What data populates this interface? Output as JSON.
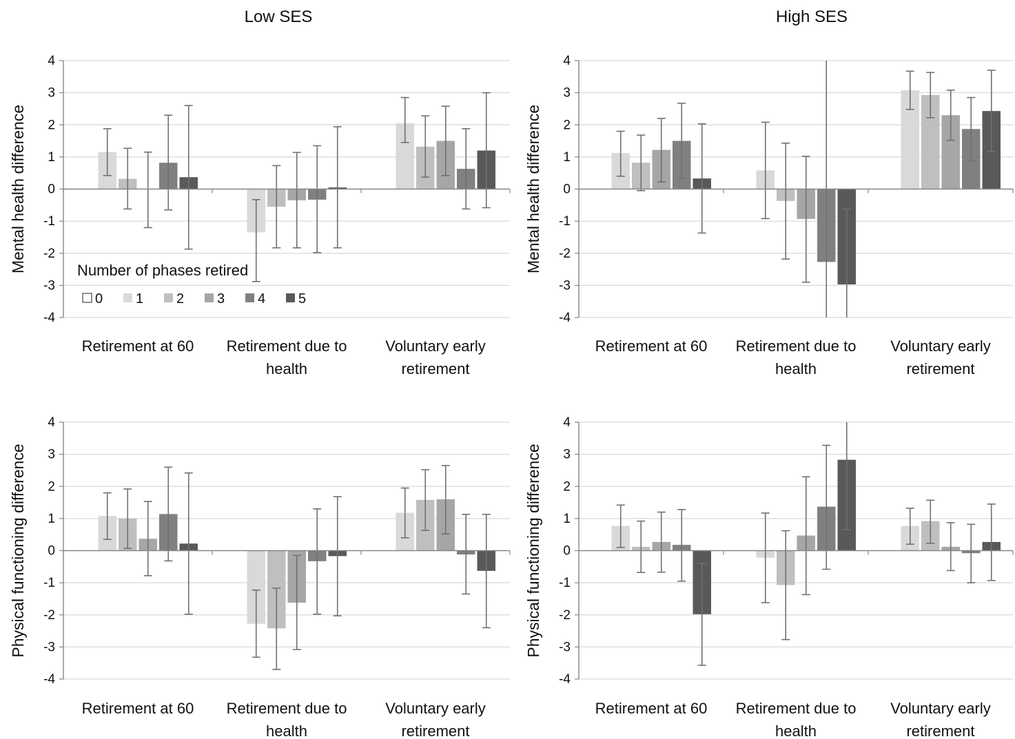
{
  "chart_data": [
    {
      "type": "bar",
      "title": "Low SES",
      "ylabel": "Mental health difference",
      "ylim": [
        -4,
        4
      ],
      "yticks": [
        4,
        3,
        2,
        1,
        0,
        -1,
        -2,
        -3,
        -4
      ],
      "grid": true,
      "categories": [
        [
          "Retirement at 60"
        ],
        [
          "Retirement due to",
          "health"
        ],
        [
          "Voluntary early",
          "retirement"
        ]
      ],
      "legend": {
        "title": "Number of phases retired",
        "placement": "lower-left",
        "entries": [
          "0",
          "1",
          "2",
          "3",
          "4",
          "5"
        ]
      },
      "series": [
        {
          "name": "0",
          "values": [
            0,
            0,
            0
          ],
          "errors": [
            null,
            null,
            null
          ]
        },
        {
          "name": "1",
          "values": [
            1.15,
            -1.35,
            2.05
          ],
          "errors": [
            [
              0.42,
              1.88
            ],
            [
              -2.88,
              -0.33
            ],
            [
              1.45,
              2.85
            ]
          ]
        },
        {
          "name": "2",
          "values": [
            0.32,
            -0.55,
            1.32
          ],
          "errors": [
            [
              -0.62,
              1.27
            ],
            [
              -1.83,
              0.73
            ],
            [
              0.37,
              2.28
            ]
          ]
        },
        {
          "name": "3",
          "values": [
            0.0,
            -0.35,
            1.5
          ],
          "errors": [
            [
              -1.2,
              1.15
            ],
            [
              -1.83,
              1.14
            ],
            [
              0.42,
              2.58
            ]
          ]
        },
        {
          "name": "4",
          "values": [
            0.82,
            -0.33,
            0.63
          ],
          "errors": [
            [
              -0.65,
              2.3
            ],
            [
              -1.98,
              1.35
            ],
            [
              -0.62,
              1.88
            ]
          ]
        },
        {
          "name": "5",
          "values": [
            0.37,
            0.05,
            1.2
          ],
          "errors": [
            [
              -1.87,
              2.6
            ],
            [
              -1.83,
              1.94
            ],
            [
              -0.58,
              3.0
            ]
          ]
        }
      ]
    },
    {
      "type": "bar",
      "title": "High SES",
      "ylabel": "Mental health difference",
      "ylim": [
        -4,
        4
      ],
      "yticks": [
        4,
        3,
        2,
        1,
        0,
        -1,
        -2,
        -3,
        -4
      ],
      "grid": true,
      "categories": [
        [
          "Retirement at 60"
        ],
        [
          "Retirement due to",
          "health"
        ],
        [
          "Voluntary early",
          "retirement"
        ]
      ],
      "series": [
        {
          "name": "0",
          "values": [
            0,
            0,
            0
          ],
          "errors": [
            null,
            null,
            null
          ]
        },
        {
          "name": "1",
          "values": [
            1.12,
            0.58,
            3.08
          ],
          "errors": [
            [
              0.4,
              1.8
            ],
            [
              -0.92,
              2.08
            ],
            [
              2.48,
              3.67
            ]
          ]
        },
        {
          "name": "2",
          "values": [
            0.82,
            -0.37,
            2.93
          ],
          "errors": [
            [
              -0.05,
              1.68
            ],
            [
              -2.18,
              1.43
            ],
            [
              2.22,
              3.63
            ]
          ]
        },
        {
          "name": "3",
          "values": [
            1.22,
            -0.93,
            2.3
          ],
          "errors": [
            [
              0.22,
              2.2
            ],
            [
              -2.9,
              1.02
            ],
            [
              1.52,
              3.08
            ]
          ]
        },
        {
          "name": "4",
          "values": [
            1.5,
            -2.27,
            1.87
          ],
          "errors": [
            [
              0.33,
              2.67
            ],
            [
              -4.0,
              null
            ],
            [
              0.88,
              2.85
            ]
          ]
        },
        {
          "name": "5",
          "values": [
            0.33,
            -2.97,
            2.43
          ],
          "errors": [
            [
              -1.37,
              2.03
            ],
            [
              -4.0,
              -0.62
            ],
            [
              1.17,
              3.7
            ]
          ]
        }
      ]
    },
    {
      "type": "bar",
      "title": "",
      "ylabel": "Physical functioning difference",
      "ylim": [
        -4,
        4
      ],
      "yticks": [
        4,
        3,
        2,
        1,
        0,
        -1,
        -2,
        -3,
        -4
      ],
      "grid": true,
      "categories": [
        [
          "Retirement at 60"
        ],
        [
          "Retirement due to",
          "health"
        ],
        [
          "Voluntary early",
          "retirement"
        ]
      ],
      "series": [
        {
          "name": "0",
          "values": [
            0,
            0,
            0
          ],
          "errors": [
            null,
            null,
            null
          ]
        },
        {
          "name": "1",
          "values": [
            1.08,
            -2.28,
            1.18
          ],
          "errors": [
            [
              0.35,
              1.8
            ],
            [
              -3.32,
              -1.23
            ],
            [
              0.4,
              1.95
            ]
          ]
        },
        {
          "name": "2",
          "values": [
            1.0,
            -2.42,
            1.58
          ],
          "errors": [
            [
              0.07,
              1.92
            ],
            [
              -3.7,
              -1.17
            ],
            [
              0.63,
              2.52
            ]
          ]
        },
        {
          "name": "3",
          "values": [
            0.37,
            -1.62,
            1.6
          ],
          "errors": [
            [
              -0.78,
              1.53
            ],
            [
              -3.08,
              -0.15
            ],
            [
              0.52,
              2.65
            ]
          ]
        },
        {
          "name": "4",
          "values": [
            1.14,
            -0.33,
            -0.12
          ],
          "errors": [
            [
              -0.32,
              2.6
            ],
            [
              -1.98,
              1.3
            ],
            [
              -1.35,
              1.13
            ]
          ]
        },
        {
          "name": "5",
          "values": [
            0.22,
            -0.17,
            -0.63
          ],
          "errors": [
            [
              -1.98,
              2.42
            ],
            [
              -2.03,
              1.68
            ],
            [
              -2.4,
              1.13
            ]
          ]
        }
      ]
    },
    {
      "type": "bar",
      "title": "",
      "ylabel": "Physical functioning difference",
      "ylim": [
        -4,
        4
      ],
      "yticks": [
        4,
        3,
        2,
        1,
        0,
        -1,
        -2,
        -3,
        -4
      ],
      "grid": true,
      "categories": [
        [
          "Retirement at 60"
        ],
        [
          "Retirement due to",
          "health"
        ],
        [
          "Voluntary early",
          "retirement"
        ]
      ],
      "series": [
        {
          "name": "0",
          "values": [
            0,
            0,
            0
          ],
          "errors": [
            null,
            null,
            null
          ]
        },
        {
          "name": "1",
          "values": [
            0.77,
            -0.22,
            0.77
          ],
          "errors": [
            [
              0.1,
              1.42
            ],
            [
              -1.62,
              1.17
            ],
            [
              0.2,
              1.32
            ]
          ]
        },
        {
          "name": "2",
          "values": [
            0.12,
            -1.07,
            0.92
          ],
          "errors": [
            [
              -0.68,
              0.92
            ],
            [
              -2.77,
              0.62
            ],
            [
              0.23,
              1.57
            ]
          ]
        },
        {
          "name": "3",
          "values": [
            0.27,
            0.47,
            0.12
          ],
          "errors": [
            [
              -0.67,
              1.2
            ],
            [
              -1.37,
              2.3
            ],
            [
              -0.62,
              0.87
            ]
          ]
        },
        {
          "name": "4",
          "values": [
            0.18,
            1.37,
            -0.08
          ],
          "errors": [
            [
              -0.95,
              1.28
            ],
            [
              -0.58,
              3.28
            ],
            [
              -1.0,
              0.82
            ]
          ]
        },
        {
          "name": "5",
          "values": [
            -1.98,
            2.83,
            0.27
          ],
          "errors": [
            [
              -3.57,
              -0.4
            ],
            [
              0.65,
              null
            ],
            [
              -0.93,
              1.45
            ]
          ]
        }
      ]
    }
  ],
  "colors": {
    "series": [
      "#ffffff",
      "#d9d9d9",
      "#bfbfbf",
      "#a6a6a6",
      "#808080",
      "#595959"
    ],
    "legend_swatch_0_border": "#555555",
    "grid": "#d9d9d9",
    "axis": "#868686",
    "error_bar": "#707070"
  }
}
